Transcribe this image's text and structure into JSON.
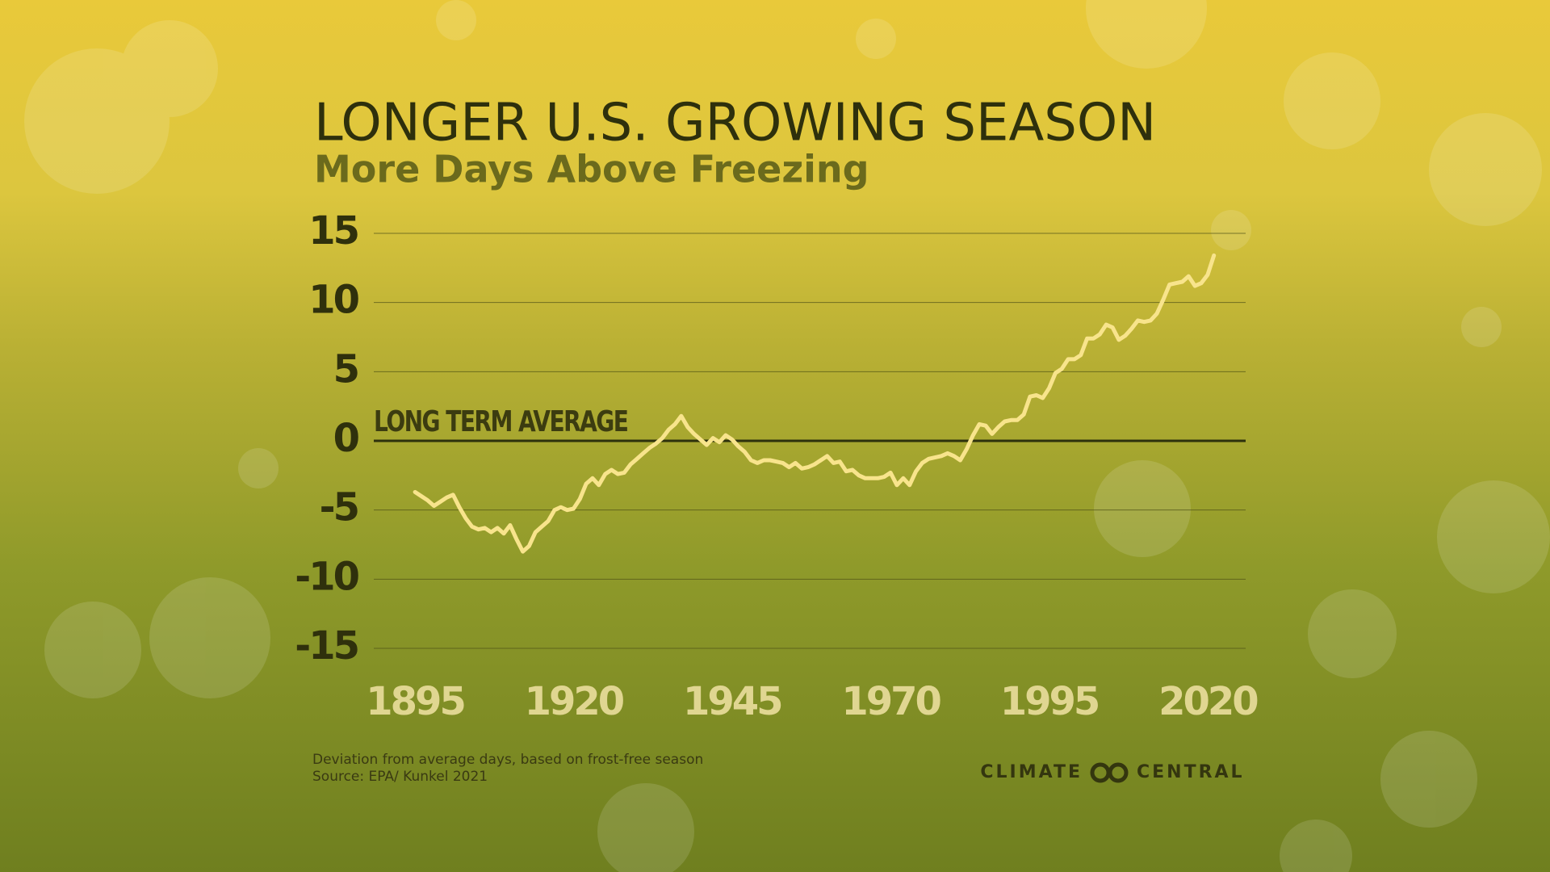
{
  "chart_data": {
    "type": "line",
    "title": "LONGER U.S. GROWING SEASON",
    "subtitle": "More Days Above Freezing",
    "annotation": "LONG TERM AVERAGE",
    "note": "Deviation from average days, based on frost-free season",
    "source": "Source: EPA/ Kunkel 2021",
    "color": "#f8e48c",
    "grid": true,
    "xlim": [
      1888.5,
      2026
    ],
    "xticks": [
      1895,
      1920,
      1945,
      1970,
      1995,
      2020
    ],
    "ylim": [
      -15,
      15
    ],
    "yticks": [
      15,
      10,
      5,
      0,
      -5,
      -10,
      -15
    ],
    "x": [
      1895,
      1896,
      1897,
      1898,
      1899,
      1900,
      1901,
      1902,
      1903,
      1904,
      1905,
      1906,
      1907,
      1908,
      1909,
      1910,
      1911,
      1912,
      1913,
      1914,
      1915,
      1916,
      1917,
      1918,
      1919,
      1920,
      1921,
      1922,
      1923,
      1924,
      1925,
      1926,
      1927,
      1928,
      1929,
      1930,
      1931,
      1932,
      1933,
      1934,
      1935,
      1936,
      1937,
      1938,
      1939,
      1940,
      1941,
      1942,
      1943,
      1944,
      1945,
      1946,
      1947,
      1948,
      1949,
      1950,
      1951,
      1952,
      1953,
      1954,
      1955,
      1956,
      1957,
      1958,
      1959,
      1960,
      1961,
      1962,
      1963,
      1964,
      1965,
      1966,
      1967,
      1968,
      1969,
      1970,
      1971,
      1972,
      1973,
      1974,
      1975,
      1976,
      1977,
      1978,
      1979,
      1980,
      1981,
      1982,
      1983,
      1984,
      1985,
      1986,
      1987,
      1988,
      1989,
      1990,
      1991,
      1992,
      1993,
      1994,
      1995,
      1996,
      1997,
      1998,
      1999,
      2000,
      2001,
      2002,
      2003,
      2004,
      2005,
      2006,
      2007,
      2008,
      2009,
      2010,
      2011,
      2012,
      2013,
      2014,
      2015,
      2016,
      2017,
      2018,
      2019,
      2020,
      2021
    ],
    "values": [
      -3.7,
      -4.0,
      -4.3,
      -4.7,
      -4.4,
      -4.1,
      -3.9,
      -4.8,
      -5.6,
      -6.2,
      -6.4,
      -6.3,
      -6.6,
      -6.3,
      -6.7,
      -6.1,
      -7.1,
      -8.0,
      -7.6,
      -6.6,
      -6.2,
      -5.8,
      -5.0,
      -4.8,
      -5.0,
      -4.9,
      -4.2,
      -3.1,
      -2.7,
      -3.2,
      -2.4,
      -2.1,
      -2.4,
      -2.3,
      -1.7,
      -1.3,
      -0.9,
      -0.5,
      -0.2,
      0.2,
      0.8,
      1.2,
      1.8,
      1.0,
      0.5,
      0.1,
      -0.3,
      0.2,
      -0.1,
      0.4,
      0.1,
      -0.4,
      -0.8,
      -1.4,
      -1.6,
      -1.4,
      -1.4,
      -1.5,
      -1.6,
      -1.9,
      -1.6,
      -2.0,
      -1.9,
      -1.7,
      -1.4,
      -1.1,
      -1.6,
      -1.5,
      -2.2,
      -2.1,
      -2.5,
      -2.7,
      -2.7,
      -2.7,
      -2.6,
      -2.3,
      -3.2,
      -2.7,
      -3.2,
      -2.2,
      -1.6,
      -1.3,
      -1.2,
      -1.1,
      -0.9,
      -1.1,
      -1.4,
      -0.6,
      0.4,
      1.2,
      1.1,
      0.5,
      1.0,
      1.4,
      1.5,
      1.5,
      1.9,
      3.2,
      3.3,
      3.1,
      3.8,
      4.9,
      5.2,
      5.9,
      5.9,
      6.2,
      7.4,
      7.4,
      7.7,
      8.4,
      8.2,
      7.3,
      7.6,
      8.1,
      8.7,
      8.6,
      8.7,
      9.2,
      10.2,
      11.3,
      11.4,
      11.5,
      11.9,
      11.2,
      11.4,
      12.0,
      13.4
    ]
  },
  "logo": {
    "left": "CLIMATE",
    "right": "CENTRAL"
  }
}
